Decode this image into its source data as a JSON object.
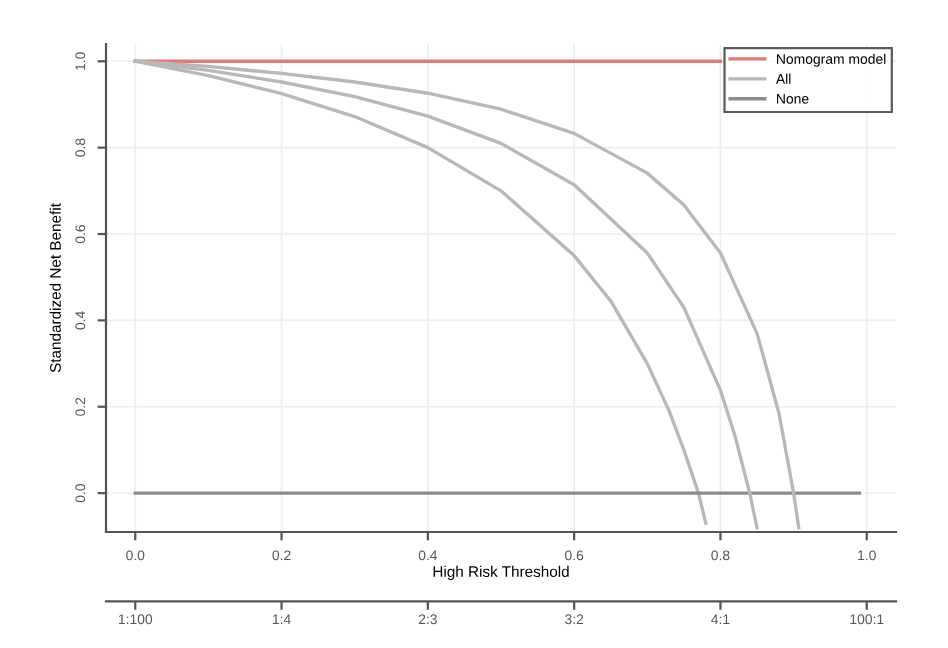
{
  "chart_data": {
    "type": "line",
    "xlabel": "High Risk Threshold",
    "ylabel": "Standardized Net Benefit",
    "xlim": [
      -0.04,
      1.04
    ],
    "ylim": [
      -0.09,
      1.04
    ],
    "xticks": [
      {
        "value": 0,
        "label": "0.0"
      },
      0.2,
      0.4,
      0.6,
      0.8,
      {
        "value": 1,
        "label": "1.0"
      }
    ],
    "yticks": [
      {
        "value": 0,
        "label": "0.0"
      },
      0.2,
      0.4,
      0.6,
      0.8,
      {
        "value": 1,
        "label": "1.0"
      }
    ],
    "annotations": [
      "1:100",
      "1:4",
      "2:3",
      "3:2",
      "4:1",
      "100:1"
    ],
    "grid": true,
    "legend": "top right",
    "marker": "none",
    "line_style": "solid",
    "series": [
      {
        "name": "Nomogram model",
        "color": "#e07a7a",
        "x": [
          0,
          0.8
        ],
        "values": [
          1,
          1
        ]
      },
      {
        "name": "All",
        "color": "#b8b8b8",
        "x": [
          0,
          0.1,
          0.2,
          0.3,
          0.4,
          0.5,
          0.6,
          0.65,
          0.7,
          0.73,
          0.75,
          0.77,
          0.78
        ],
        "values": [
          1,
          0.967,
          0.925,
          0.872,
          0.8,
          0.7,
          0.55,
          0.445,
          0.3,
          0.19,
          0.1,
          0,
          -0.07
        ]
      },
      {
        "name": "None",
        "color": "#8c8c8c",
        "x": [
          0,
          0.99
        ],
        "values": [
          0,
          0
        ]
      },
      {
        "color": "#b8b8b8",
        "x": [
          0,
          0.1,
          0.2,
          0.3,
          0.4,
          0.5,
          0.6,
          0.7,
          0.75,
          0.8,
          0.82,
          0.84,
          0.85
        ],
        "values": [
          1,
          0.979,
          0.952,
          0.918,
          0.873,
          0.81,
          0.714,
          0.556,
          0.43,
          0.238,
          0.132,
          0,
          -0.08
        ]
      },
      {
        "color": "#b8b8b8",
        "x": [
          0,
          0.1,
          0.2,
          0.3,
          0.4,
          0.5,
          0.6,
          0.7,
          0.75,
          0.8,
          0.85,
          0.88,
          0.9,
          0.907
        ],
        "values": [
          1,
          0.988,
          0.972,
          0.952,
          0.926,
          0.889,
          0.833,
          0.741,
          0.667,
          0.556,
          0.37,
          0.185,
          0,
          -0.08
        ]
      }
    ]
  }
}
